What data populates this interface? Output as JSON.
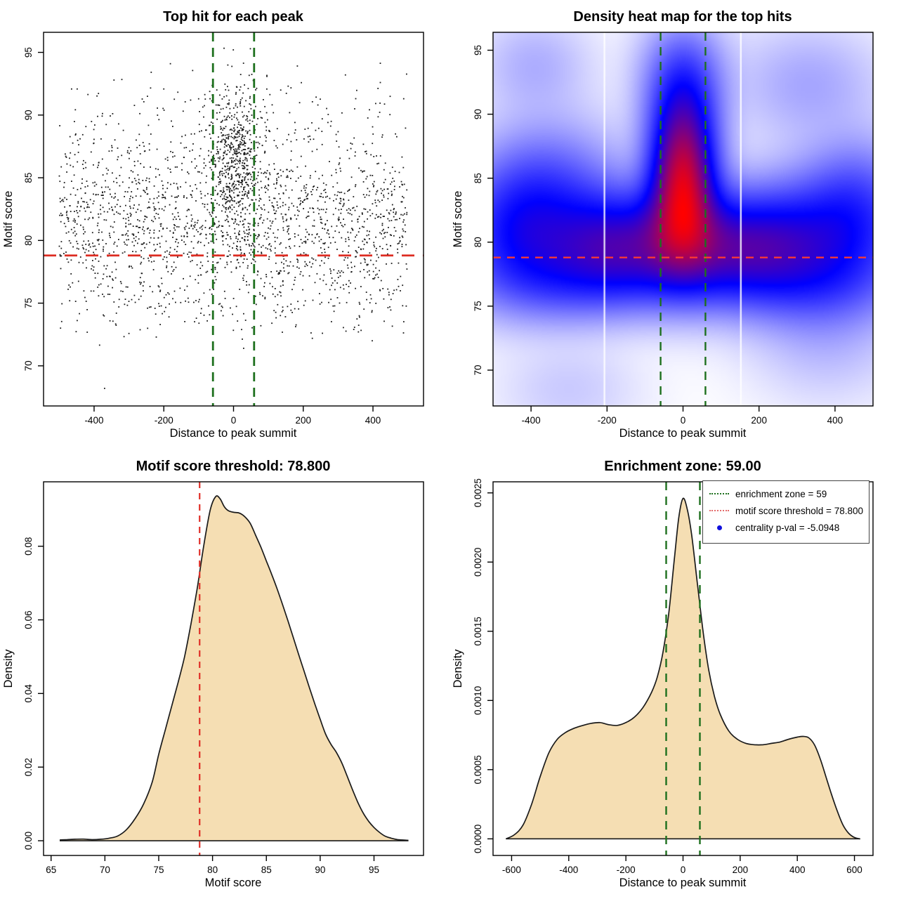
{
  "chart_data": [
    {
      "type": "scatter",
      "title": "Top hit for each peak",
      "xlabel": "Distance to peak summit",
      "ylabel": "Motif score",
      "xlim": [
        -545,
        545
      ],
      "ylim": [
        66.8,
        96.6
      ],
      "xticks": [
        -400,
        -200,
        0,
        200,
        400
      ],
      "xtick_labels": [
        "-400",
        "-200",
        "0",
        "200",
        "400"
      ],
      "yticks": [
        70,
        75,
        80,
        85,
        90,
        95
      ],
      "ytick_labels": [
        "70",
        "75",
        "80",
        "85",
        "90",
        "95"
      ],
      "enrichment_zone_x": [
        -59,
        59
      ],
      "motif_score_threshold_y": 78.8,
      "vline_color": "#1E701E",
      "hline_color": "#DD2C22",
      "point_color": "#1c1c1c",
      "seed": 20,
      "y_clip": [
        68.0,
        95.9
      ],
      "clusters": [
        {
          "n": 1850,
          "x": {
            "uniform": [
              -500,
              500
            ]
          },
          "y": {
            "normal": [
              81.2,
              3.5
            ]
          }
        },
        {
          "n": 620,
          "x": {
            "normal": [
              5,
              40
            ]
          },
          "y": {
            "normal": [
              86.4,
              3.1
            ]
          }
        },
        {
          "n": 150,
          "x": {
            "uniform": [
              -480,
              500
            ]
          },
          "y": {
            "normal": [
              89.6,
              2.2
            ]
          }
        },
        {
          "n": 70,
          "x": {
            "uniform": [
              -450,
              480
            ]
          },
          "y": {
            "normal": [
              74.9,
              1.1
            ]
          }
        }
      ],
      "outliers": [
        [
          -370,
          68.2
        ],
        [
          255,
          72.6
        ],
        [
          345,
          72.9
        ],
        [
          110,
          73.4
        ]
      ]
    },
    {
      "type": "heatmap",
      "title": "Density heat map for the top hits",
      "xlabel": "Distance to peak summit",
      "ylabel": "Motif score",
      "xlim": [
        -500,
        500
      ],
      "ylim": [
        67.2,
        96.4
      ],
      "xticks": [
        -400,
        -200,
        0,
        200,
        400
      ],
      "xtick_labels": [
        "-400",
        "-200",
        "0",
        "200",
        "400"
      ],
      "yticks": [
        70,
        75,
        80,
        85,
        90,
        95
      ],
      "ytick_labels": [
        "70",
        "75",
        "80",
        "85",
        "90",
        "95"
      ],
      "enrichment_zone_x": [
        -59,
        59
      ],
      "motif_score_threshold_y": 78.8,
      "vline_color": "#1E701E",
      "hline_color": "#FF3B2F",
      "colormap": [
        "#FFFFFF",
        "#0000FF",
        "#FF0000"
      ],
      "artifact_lines_x": [
        -207,
        152
      ],
      "kernels": [
        {
          "x": 0,
          "y": 85.4,
          "sx": 52,
          "sy": 3.4,
          "w": 1.0
        },
        {
          "x": 0,
          "y": 82.3,
          "sx": 64,
          "sy": 3.2,
          "w": 0.72
        },
        {
          "x": 0,
          "y": 89.8,
          "sx": 62,
          "sy": 3.2,
          "w": 0.5
        },
        {
          "x": 0,
          "y": 93.5,
          "sx": 70,
          "sy": 2.6,
          "w": 0.22
        },
        {
          "x": 0,
          "y": 80.0,
          "sx": 250,
          "sy": 2.3,
          "w": 0.5
        },
        {
          "x": -180,
          "y": 80.3,
          "sx": 110,
          "sy": 2.6,
          "w": 0.42
        },
        {
          "x": 175,
          "y": 80.2,
          "sx": 115,
          "sy": 2.6,
          "w": 0.42
        },
        {
          "x": -350,
          "y": 83.8,
          "sx": 120,
          "sy": 3.4,
          "w": 0.36
        },
        {
          "x": -445,
          "y": 81.0,
          "sx": 100,
          "sy": 3.2,
          "w": 0.4
        },
        {
          "x": 385,
          "y": 80.8,
          "sx": 130,
          "sy": 3.2,
          "w": 0.42
        },
        {
          "x": 460,
          "y": 83.5,
          "sx": 90,
          "sy": 3.0,
          "w": 0.25
        },
        {
          "x": 0,
          "y": 77.2,
          "sx": 300,
          "sy": 2.0,
          "w": 0.3
        },
        {
          "x": -320,
          "y": 76.8,
          "sx": 140,
          "sy": 2.2,
          "w": 0.2
        },
        {
          "x": 350,
          "y": 76.3,
          "sx": 150,
          "sy": 2.4,
          "w": 0.2
        },
        {
          "x": -390,
          "y": 93.8,
          "sx": 90,
          "sy": 2.4,
          "w": 0.1
        },
        {
          "x": 330,
          "y": 92.3,
          "sx": 120,
          "sy": 2.8,
          "w": 0.12
        },
        {
          "x": -300,
          "y": 68.5,
          "sx": 110,
          "sy": 2.2,
          "w": 0.05
        },
        {
          "x": 380,
          "y": 72.0,
          "sx": 120,
          "sy": 2.8,
          "w": 0.07
        }
      ]
    },
    {
      "type": "area",
      "title": "Motif score threshold: 78.800",
      "xlabel": "Motif score",
      "ylabel": "Density",
      "xlim": [
        64.3,
        99.6
      ],
      "ylim": [
        -0.004,
        0.0975
      ],
      "xticks": [
        65,
        70,
        75,
        80,
        85,
        90,
        95
      ],
      "xtick_labels": [
        "65",
        "70",
        "75",
        "80",
        "85",
        "90",
        "95"
      ],
      "yticks": [
        0.0,
        0.02,
        0.04,
        0.06,
        0.08
      ],
      "ytick_labels": [
        "0.00",
        "0.02",
        "0.04",
        "0.06",
        "0.08"
      ],
      "fill_color": "#F5DEB3",
      "line_color": "#1a1a1a",
      "threshold_x": 78.8,
      "vline_color": "#E03028",
      "points": [
        [
          65.8,
          0.0002
        ],
        [
          66.5,
          0.0003
        ],
        [
          67.2,
          0.0004
        ],
        [
          68.0,
          0.00045
        ],
        [
          68.8,
          0.0003
        ],
        [
          69.6,
          0.0004
        ],
        [
          70.4,
          0.0007
        ],
        [
          71.2,
          0.0013
        ],
        [
          72.0,
          0.003
        ],
        [
          72.8,
          0.006
        ],
        [
          73.6,
          0.01
        ],
        [
          74.4,
          0.016
        ],
        [
          75.0,
          0.0235
        ],
        [
          75.6,
          0.03
        ],
        [
          76.2,
          0.0365
        ],
        [
          76.8,
          0.043
        ],
        [
          77.4,
          0.05
        ],
        [
          78.0,
          0.059
        ],
        [
          78.6,
          0.069
        ],
        [
          79.2,
          0.0805
        ],
        [
          79.8,
          0.09
        ],
        [
          80.3,
          0.0935
        ],
        [
          80.7,
          0.0929
        ],
        [
          81.1,
          0.0907
        ],
        [
          81.5,
          0.0896
        ],
        [
          82.0,
          0.0892
        ],
        [
          82.5,
          0.089
        ],
        [
          83.0,
          0.088
        ],
        [
          83.5,
          0.0862
        ],
        [
          84.0,
          0.083
        ],
        [
          84.5,
          0.0797
        ],
        [
          85.0,
          0.076
        ],
        [
          85.5,
          0.0723
        ],
        [
          86.0,
          0.0684
        ],
        [
          86.5,
          0.0642
        ],
        [
          87.0,
          0.0598
        ],
        [
          87.5,
          0.0552
        ],
        [
          88.0,
          0.0506
        ],
        [
          88.5,
          0.0461
        ],
        [
          89.0,
          0.0416
        ],
        [
          89.5,
          0.0372
        ],
        [
          90.0,
          0.033
        ],
        [
          90.5,
          0.029
        ],
        [
          91.0,
          0.0262
        ],
        [
          91.5,
          0.024
        ],
        [
          92.0,
          0.0212
        ],
        [
          92.5,
          0.0176
        ],
        [
          93.0,
          0.0139
        ],
        [
          93.5,
          0.0104
        ],
        [
          94.0,
          0.0075
        ],
        [
          94.5,
          0.0053
        ],
        [
          95.0,
          0.0036
        ],
        [
          95.5,
          0.0023
        ],
        [
          96.0,
          0.0013
        ],
        [
          96.6,
          0.0007
        ],
        [
          97.2,
          0.0003
        ],
        [
          98.2,
          0.0001
        ]
      ]
    },
    {
      "type": "area",
      "title": "Enrichment zone: 59.00",
      "xlabel": "Distance to peak summit",
      "ylabel": "Density",
      "xlim": [
        -665,
        665
      ],
      "ylim": [
        -0.00012,
        0.00258
      ],
      "xticks": [
        -600,
        -400,
        -200,
        0,
        200,
        400,
        600
      ],
      "xtick_labels": [
        "-600",
        "-400",
        "-200",
        "0",
        "200",
        "400",
        "600"
      ],
      "yticks": [
        0.0,
        0.0005,
        0.001,
        0.0015,
        0.002,
        0.0025
      ],
      "ytick_labels": [
        "0.0000",
        "0.0005",
        "0.0010",
        "0.0015",
        "0.0020",
        "0.0025"
      ],
      "fill_color": "#F5DEB3",
      "line_color": "#1a1a1a",
      "enrichment_zone_x": [
        -59,
        59
      ],
      "vline_color": "#1E701E",
      "legend": {
        "items": [
          {
            "swatch": "dotted-line",
            "color": "#1E701E",
            "label": "enrichment zone = 59"
          },
          {
            "swatch": "dotted-line",
            "color": "#E36C6C",
            "label": "motif score threshold = 78.800"
          },
          {
            "swatch": "dot",
            "color": "#1010DD",
            "label": "centrality p-val = -5.0948"
          }
        ]
      },
      "points": [
        [
          -620,
          0.0
        ],
        [
          -590,
          3e-05
        ],
        [
          -560,
          0.0001
        ],
        [
          -530,
          0.00025
        ],
        [
          -500,
          0.00045
        ],
        [
          -470,
          0.00062
        ],
        [
          -440,
          0.00072
        ],
        [
          -410,
          0.00077
        ],
        [
          -380,
          0.0008
        ],
        [
          -350,
          0.00082
        ],
        [
          -320,
          0.000835
        ],
        [
          -290,
          0.00084
        ],
        [
          -260,
          0.000825
        ],
        [
          -230,
          0.00082
        ],
        [
          -200,
          0.00084
        ],
        [
          -170,
          0.00088
        ],
        [
          -140,
          0.00095
        ],
        [
          -110,
          0.00106
        ],
        [
          -90,
          0.00117
        ],
        [
          -70,
          0.00135
        ],
        [
          -50,
          0.00163
        ],
        [
          -30,
          0.00203
        ],
        [
          -15,
          0.00232
        ],
        [
          0,
          0.00246
        ],
        [
          15,
          0.00238
        ],
        [
          30,
          0.0022
        ],
        [
          50,
          0.00185
        ],
        [
          70,
          0.0015
        ],
        [
          90,
          0.00122
        ],
        [
          110,
          0.00103
        ],
        [
          130,
          0.0009
        ],
        [
          160,
          0.00078
        ],
        [
          190,
          0.00072
        ],
        [
          220,
          0.00069
        ],
        [
          250,
          0.00068
        ],
        [
          280,
          0.00068
        ],
        [
          310,
          0.00069
        ],
        [
          340,
          0.0007
        ],
        [
          370,
          0.00072
        ],
        [
          400,
          0.000735
        ],
        [
          420,
          0.00074
        ],
        [
          440,
          0.00073
        ],
        [
          460,
          0.00068
        ],
        [
          480,
          0.00058
        ],
        [
          500,
          0.00045
        ],
        [
          520,
          0.00032
        ],
        [
          540,
          0.0002
        ],
        [
          560,
          0.0001
        ],
        [
          580,
          4e-05
        ],
        [
          600,
          1e-05
        ],
        [
          620,
          0.0
        ]
      ]
    }
  ]
}
